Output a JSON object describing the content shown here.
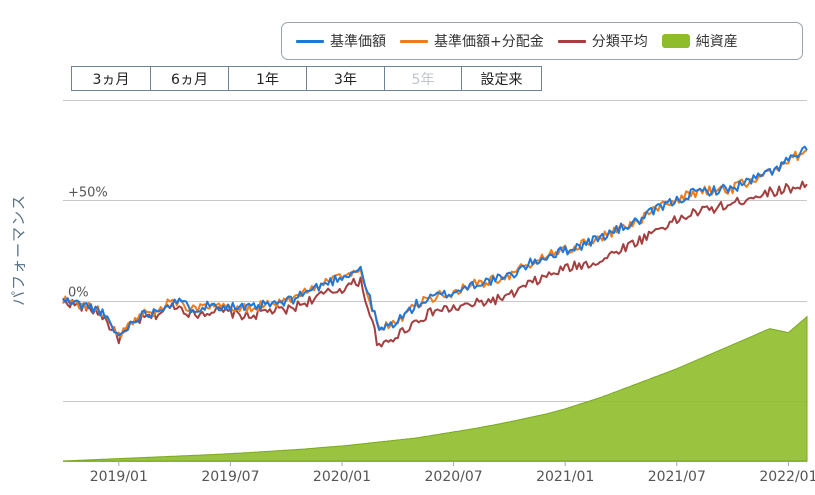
{
  "legend": {
    "nav": {
      "label": "基準価額",
      "color": "#1f77d9"
    },
    "nav_div": {
      "label": "基準価額+分配金",
      "color": "#f07b1a"
    },
    "avg": {
      "label": "分類平均",
      "color": "#a33f3f"
    },
    "assets": {
      "label": "純資産",
      "color": "#8fbc2b"
    }
  },
  "ranges": [
    {
      "label": "3ヵ月",
      "disabled": false
    },
    {
      "label": "6ヵ月",
      "disabled": false
    },
    {
      "label": "1年",
      "disabled": false
    },
    {
      "label": "3年",
      "disabled": false
    },
    {
      "label": "5年",
      "disabled": true
    },
    {
      "label": "設定来",
      "disabled": false
    }
  ],
  "y_axis_label": "パフォーマンス",
  "chart_data": {
    "type": "line",
    "x_ticks": [
      "2019/01",
      "2019/07",
      "2020/01",
      "2020/07",
      "2021/01",
      "2021/07",
      "2022/01"
    ],
    "y_tick_labels": [
      {
        "value": 50,
        "label": "+50%"
      },
      {
        "value": 0,
        "label": "0%"
      }
    ],
    "ylim": [
      -80,
      100
    ],
    "x": [
      "2018/10",
      "2018/11",
      "2018/12",
      "2019/01",
      "2019/02",
      "2019/03",
      "2019/04",
      "2019/05",
      "2019/06",
      "2019/07",
      "2019/08",
      "2019/09",
      "2019/10",
      "2019/11",
      "2019/12",
      "2020/01",
      "2020/02",
      "2020/03",
      "2020/04",
      "2020/05",
      "2020/06",
      "2020/07",
      "2020/08",
      "2020/09",
      "2020/10",
      "2020/11",
      "2020/12",
      "2021/01",
      "2021/02",
      "2021/03",
      "2021/04",
      "2021/05",
      "2021/06",
      "2021/07",
      "2021/08",
      "2021/09",
      "2021/10",
      "2021/11",
      "2021/12",
      "2022/01",
      "2022/02"
    ],
    "series": [
      {
        "name": "基準価額",
        "kind": "line",
        "color": "#1f77d9",
        "values": [
          0,
          -2,
          -5,
          -18,
          -8,
          -5,
          0,
          -4,
          -2,
          -3,
          -4,
          -2,
          -1,
          4,
          8,
          12,
          16,
          -15,
          -10,
          -2,
          2,
          4,
          8,
          10,
          12,
          18,
          22,
          25,
          28,
          32,
          36,
          40,
          46,
          50,
          54,
          55,
          56,
          60,
          64,
          70,
          75
        ]
      },
      {
        "name": "基準価額+分配金",
        "kind": "line",
        "color": "#f07b1a",
        "values": [
          0,
          -2,
          -5,
          -18,
          -8,
          -5,
          0,
          -4,
          -2,
          -3,
          -4,
          -2,
          -1,
          4,
          8,
          12,
          16,
          -15,
          -10,
          -2,
          2,
          4,
          8,
          10,
          12,
          18,
          22,
          25,
          28,
          32,
          36,
          40,
          46,
          50,
          54,
          55,
          56,
          60,
          64,
          70,
          75
        ]
      },
      {
        "name": "分類平均",
        "kind": "line",
        "color": "#a33f3f",
        "values": [
          0,
          -3,
          -6,
          -19,
          -10,
          -7,
          -2,
          -7,
          -5,
          -6,
          -8,
          -5,
          -5,
          -1,
          3,
          6,
          10,
          -24,
          -17,
          -10,
          -5,
          -4,
          -2,
          0,
          2,
          8,
          12,
          16,
          18,
          20,
          26,
          30,
          36,
          40,
          44,
          46,
          48,
          52,
          54,
          56,
          58
        ]
      },
      {
        "name": "純資産",
        "kind": "area",
        "color": "#8fbc2b",
        "values": [
          -80,
          -79.6,
          -79.2,
          -78.8,
          -78.4,
          -78,
          -77.6,
          -77.2,
          -76.8,
          -76.3,
          -75.8,
          -75.2,
          -74.6,
          -74,
          -73.2,
          -72.5,
          -71.5,
          -70.5,
          -69.5,
          -68.5,
          -67,
          -65.5,
          -64,
          -62.3,
          -60.5,
          -58.5,
          -56.5,
          -54,
          -51,
          -48,
          -44.5,
          -41,
          -37.5,
          -34,
          -30,
          -26,
          -22,
          -18,
          -14,
          -16,
          -8
        ]
      }
    ]
  }
}
